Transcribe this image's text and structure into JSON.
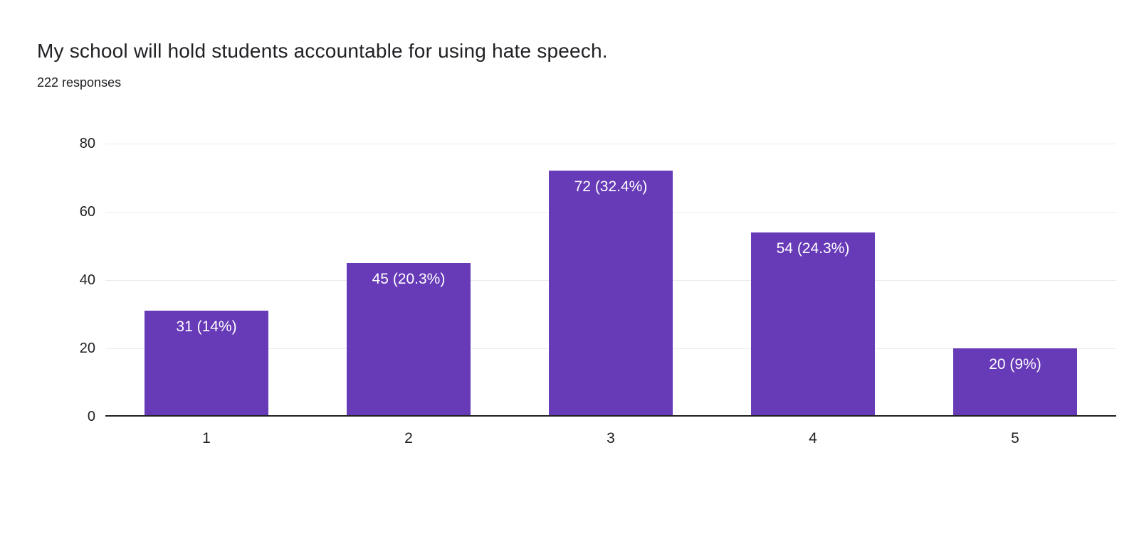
{
  "header": {
    "title": "My school will hold students accountable for using hate speech.",
    "subtitle": "222 responses"
  },
  "chart_data": {
    "type": "bar",
    "title": "My school will hold students accountable for using hate speech.",
    "subtitle": "222 responses",
    "categories": [
      "1",
      "2",
      "3",
      "4",
      "5"
    ],
    "values": [
      31,
      45,
      72,
      54,
      20
    ],
    "percentages": [
      14,
      20.3,
      32.4,
      24.3,
      9
    ],
    "bar_labels": [
      "31 (14%)",
      "45 (20.3%)",
      "72 (32.4%)",
      "54 (24.3%)",
      "20 (9%)"
    ],
    "total_responses": 222,
    "xlabel": "",
    "ylabel": "",
    "ylim": [
      0,
      80
    ],
    "yticks": [
      0,
      20,
      40,
      60,
      80
    ],
    "grid": true,
    "legend": false,
    "bar_color": "#673ab7",
    "bar_label_color": "#ffffff",
    "gridline_color": "#ebebeb",
    "axis_color": "#212121",
    "text_color": "#202124"
  }
}
